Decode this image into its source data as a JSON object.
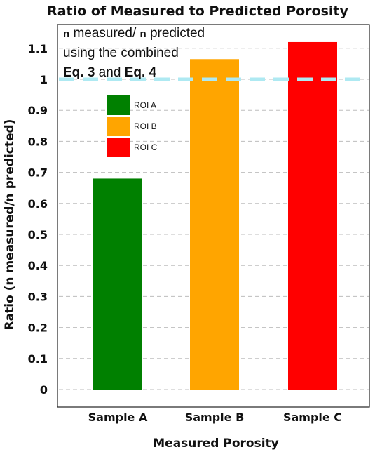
{
  "chart_data": {
    "type": "bar",
    "title": "Ratio of Measured to Predicted Porosity",
    "xlabel": "Measured Porosity",
    "ylabel": "Ratio (n measured/n predicted)",
    "categories": [
      "Sample A",
      "Sample B",
      "Sample C"
    ],
    "values": [
      0.68,
      1.065,
      1.12
    ],
    "bar_colors": [
      "#008000",
      "#ffa500",
      "#ff0000"
    ],
    "ylim": [
      0,
      1.1
    ],
    "yticks": [
      "0",
      "0.1",
      "0.2",
      "0.3",
      "0.4",
      "0.5",
      "0.6",
      "0.7",
      "0.8",
      "0.9",
      "1",
      "1.1"
    ],
    "grid": true,
    "reference_line": {
      "y": 1.0,
      "color": "#aee9f2",
      "style": "dashed"
    },
    "legend": {
      "placement": "upper-left",
      "entries": [
        {
          "label": "ROI A",
          "color": "#008000"
        },
        {
          "label": "ROI B",
          "color": "#ffa500"
        },
        {
          "label": "ROI C",
          "color": "#ff0000"
        }
      ]
    },
    "annotation": {
      "line1_sym1": "n",
      "line1_text1": " measured/ ",
      "line1_sym2": "n",
      "line1_text2": " predicted",
      "line2": "using the combined",
      "line3_bold1": "Eq. 3",
      "line3_mid": " and ",
      "line3_bold2": "Eq. 4"
    }
  }
}
